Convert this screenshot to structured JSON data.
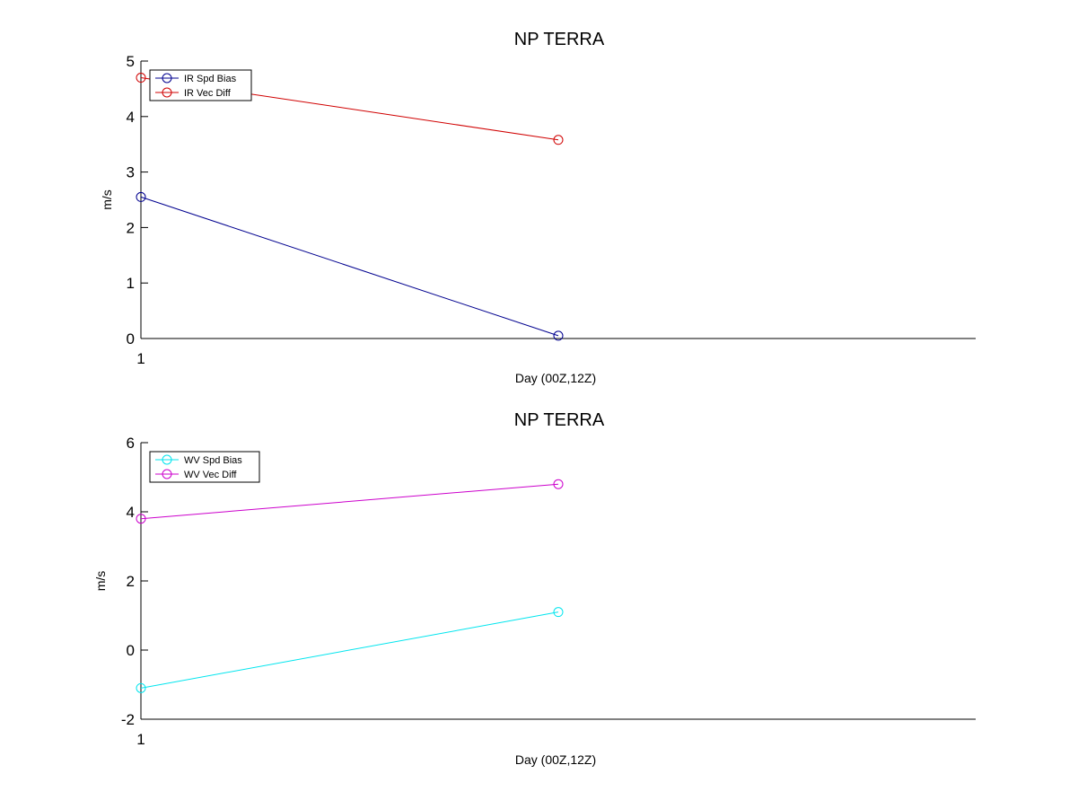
{
  "chart_data": [
    {
      "type": "line",
      "title": "NP TERRA",
      "xlabel": "Day (00Z,12Z)",
      "ylabel": "m/s",
      "x_tick_labels": [
        "1"
      ],
      "y_tick_labels": [
        "0",
        "1",
        "2",
        "3",
        "4",
        "5"
      ],
      "ylim": [
        0,
        5
      ],
      "grid": false,
      "legend_position": "top-left",
      "series": [
        {
          "name": "IR Spd Bias",
          "color": "#00008f",
          "x": [
            1,
            2
          ],
          "values": [
            2.55,
            0.05
          ]
        },
        {
          "name": "IR Vec Diff",
          "color": "#d00000",
          "x": [
            1,
            2
          ],
          "values": [
            4.7,
            3.58
          ]
        }
      ]
    },
    {
      "type": "line",
      "title": "NP TERRA",
      "xlabel": "Day (00Z,12Z)",
      "ylabel": "m/s",
      "x_tick_labels": [
        "1"
      ],
      "y_tick_labels": [
        "-2",
        "0",
        "2",
        "4",
        "6"
      ],
      "ylim": [
        -2,
        6
      ],
      "grid": false,
      "legend_position": "top-left",
      "series": [
        {
          "name": "WV Spd Bias",
          "color": "#00e5ee",
          "x": [
            1,
            2
          ],
          "values": [
            -1.1,
            1.1
          ]
        },
        {
          "name": "WV Vec Diff",
          "color": "#cc00cc",
          "x": [
            1,
            2
          ],
          "values": [
            3.8,
            4.8
          ]
        }
      ]
    }
  ]
}
